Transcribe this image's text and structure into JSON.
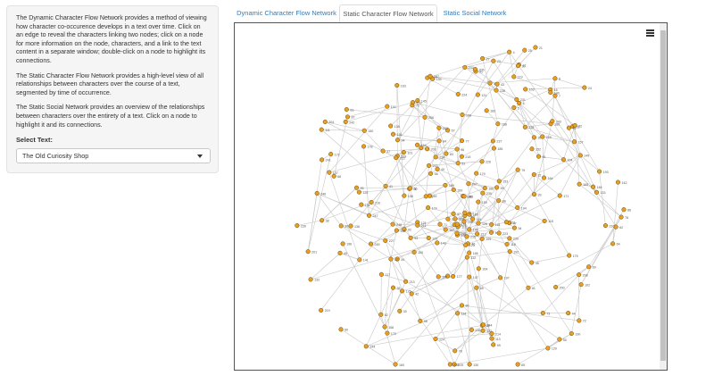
{
  "sidebar": {
    "paragraphs": [
      "The Dynamic Character Flow Network provides a method of viewing how character co-occurence develops in a text over time. Click on an edge to reveal the characters linking two nodes; click on a node for more information on the node, characters, and a link to the text content in a separate window; double-click on a node to highlight its connections.",
      "The Static Character Flow Network provides a high-level view of all relationships between characters over the course of a text, segmented by time of occurrence.",
      "The Static Social Network provides an overview of the relationships between characters over the entirety of a text. Click on a node to highlight it and its connections."
    ],
    "select_label": "Select Text:",
    "select_value": "The Old Curiosity Shop"
  },
  "tabs": [
    {
      "label": "Dynamic Character Flow Network",
      "active": false
    },
    {
      "label": "Static Character Flow Network",
      "active": true
    },
    {
      "label": "Static Social Network",
      "active": false
    }
  ],
  "graph": {
    "node_color": "#e8a020",
    "node_stroke": "#6b4a10",
    "edge_color": "#c8c8c8",
    "menu_icon": "hamburger-menu-icon",
    "nodes": [
      {
        "id": "4"
      },
      {
        "id": "5"
      },
      {
        "id": "7"
      },
      {
        "id": "6"
      },
      {
        "id": "8"
      },
      {
        "id": "11"
      },
      {
        "id": "16"
      },
      {
        "id": "12"
      },
      {
        "id": "23"
      },
      {
        "id": "24"
      },
      {
        "id": "27"
      },
      {
        "id": "25"
      },
      {
        "id": "20"
      },
      {
        "id": "21"
      },
      {
        "id": "34"
      },
      {
        "id": "36"
      },
      {
        "id": "30"
      },
      {
        "id": "31"
      },
      {
        "id": "32"
      },
      {
        "id": "35"
      },
      {
        "id": "37"
      },
      {
        "id": "38"
      },
      {
        "id": "39"
      },
      {
        "id": "40"
      },
      {
        "id": "41"
      },
      {
        "id": "42"
      },
      {
        "id": "43"
      },
      {
        "id": "44"
      },
      {
        "id": "45"
      },
      {
        "id": "46"
      },
      {
        "id": "47"
      },
      {
        "id": "48"
      },
      {
        "id": "49"
      },
      {
        "id": "50"
      },
      {
        "id": "51"
      },
      {
        "id": "52"
      },
      {
        "id": "53"
      },
      {
        "id": "54"
      },
      {
        "id": "55"
      },
      {
        "id": "56"
      },
      {
        "id": "57"
      },
      {
        "id": "58"
      },
      {
        "id": "59"
      },
      {
        "id": "60"
      },
      {
        "id": "61"
      },
      {
        "id": "62"
      },
      {
        "id": "63"
      },
      {
        "id": "64"
      },
      {
        "id": "65"
      },
      {
        "id": "66"
      },
      {
        "id": "67"
      },
      {
        "id": "68"
      },
      {
        "id": "69"
      },
      {
        "id": "70"
      },
      {
        "id": "71"
      },
      {
        "id": "72"
      },
      {
        "id": "73"
      },
      {
        "id": "74"
      },
      {
        "id": "75"
      },
      {
        "id": "76"
      },
      {
        "id": "77"
      },
      {
        "id": "78"
      },
      {
        "id": "79"
      },
      {
        "id": "80"
      },
      {
        "id": "81"
      },
      {
        "id": "82"
      },
      {
        "id": "83"
      },
      {
        "id": "84"
      },
      {
        "id": "85"
      },
      {
        "id": "86"
      },
      {
        "id": "87"
      },
      {
        "id": "88"
      },
      {
        "id": "89"
      },
      {
        "id": "90"
      },
      {
        "id": "91"
      },
      {
        "id": "92"
      },
      {
        "id": "93"
      },
      {
        "id": "94"
      },
      {
        "id": "95"
      },
      {
        "id": "96"
      },
      {
        "id": "97"
      },
      {
        "id": "98"
      },
      {
        "id": "99"
      },
      {
        "id": "100"
      },
      {
        "id": "101"
      },
      {
        "id": "102"
      },
      {
        "id": "103"
      },
      {
        "id": "104"
      },
      {
        "id": "105"
      },
      {
        "id": "106"
      },
      {
        "id": "107"
      },
      {
        "id": "108"
      },
      {
        "id": "109"
      },
      {
        "id": "110"
      },
      {
        "id": "111"
      },
      {
        "id": "112"
      },
      {
        "id": "113"
      },
      {
        "id": "114"
      },
      {
        "id": "115"
      },
      {
        "id": "116"
      },
      {
        "id": "117"
      },
      {
        "id": "118"
      },
      {
        "id": "119"
      },
      {
        "id": "120"
      },
      {
        "id": "121"
      },
      {
        "id": "122"
      },
      {
        "id": "123"
      },
      {
        "id": "124"
      },
      {
        "id": "125"
      },
      {
        "id": "126"
      },
      {
        "id": "127"
      },
      {
        "id": "128"
      },
      {
        "id": "129"
      },
      {
        "id": "130"
      },
      {
        "id": "131"
      },
      {
        "id": "132"
      },
      {
        "id": "133"
      },
      {
        "id": "134"
      },
      {
        "id": "135"
      },
      {
        "id": "136"
      },
      {
        "id": "137"
      },
      {
        "id": "138"
      },
      {
        "id": "139"
      },
      {
        "id": "140"
      },
      {
        "id": "141"
      },
      {
        "id": "142"
      },
      {
        "id": "143"
      },
      {
        "id": "144"
      },
      {
        "id": "145"
      },
      {
        "id": "146"
      },
      {
        "id": "147"
      },
      {
        "id": "148"
      },
      {
        "id": "149"
      },
      {
        "id": "150"
      },
      {
        "id": "151"
      },
      {
        "id": "152"
      },
      {
        "id": "153"
      },
      {
        "id": "154"
      },
      {
        "id": "155"
      },
      {
        "id": "156"
      },
      {
        "id": "157"
      },
      {
        "id": "158"
      },
      {
        "id": "159"
      },
      {
        "id": "160"
      },
      {
        "id": "161"
      },
      {
        "id": "162"
      },
      {
        "id": "163"
      },
      {
        "id": "164"
      },
      {
        "id": "165"
      },
      {
        "id": "166"
      },
      {
        "id": "167"
      },
      {
        "id": "168"
      },
      {
        "id": "169"
      },
      {
        "id": "170"
      },
      {
        "id": "171"
      },
      {
        "id": "172"
      },
      {
        "id": "173"
      },
      {
        "id": "174"
      },
      {
        "id": "175"
      },
      {
        "id": "176"
      },
      {
        "id": "177"
      },
      {
        "id": "178"
      },
      {
        "id": "179"
      },
      {
        "id": "180"
      },
      {
        "id": "181"
      },
      {
        "id": "182"
      },
      {
        "id": "183"
      },
      {
        "id": "184"
      },
      {
        "id": "185"
      },
      {
        "id": "186"
      },
      {
        "id": "187"
      },
      {
        "id": "188"
      },
      {
        "id": "189"
      },
      {
        "id": "190"
      },
      {
        "id": "191"
      },
      {
        "id": "192"
      },
      {
        "id": "193"
      },
      {
        "id": "194"
      },
      {
        "id": "195"
      },
      {
        "id": "196"
      },
      {
        "id": "197"
      },
      {
        "id": "198"
      },
      {
        "id": "199"
      },
      {
        "id": "200"
      },
      {
        "id": "201"
      },
      {
        "id": "202"
      },
      {
        "id": "203"
      },
      {
        "id": "204"
      },
      {
        "id": "205"
      },
      {
        "id": "206"
      },
      {
        "id": "207"
      },
      {
        "id": "208"
      },
      {
        "id": "209"
      },
      {
        "id": "210"
      },
      {
        "id": "211"
      },
      {
        "id": "212"
      },
      {
        "id": "213"
      },
      {
        "id": "214"
      },
      {
        "id": "215"
      },
      {
        "id": "216"
      },
      {
        "id": "217"
      },
      {
        "id": "218"
      },
      {
        "id": "219"
      },
      {
        "id": "220"
      },
      {
        "id": "221"
      },
      {
        "id": "222"
      },
      {
        "id": "223"
      },
      {
        "id": "224"
      },
      {
        "id": "225"
      },
      {
        "id": "226"
      },
      {
        "id": "227"
      },
      {
        "id": "228"
      },
      {
        "id": "229"
      },
      {
        "id": "230"
      },
      {
        "id": "231"
      },
      {
        "id": "232"
      },
      {
        "id": "233"
      },
      {
        "id": "234"
      },
      {
        "id": "235"
      },
      {
        "id": "236"
      },
      {
        "id": "237"
      },
      {
        "id": "238"
      },
      {
        "id": "239"
      },
      {
        "id": "240"
      },
      {
        "id": "241"
      },
      {
        "id": "242"
      },
      {
        "id": "243"
      },
      {
        "id": "244"
      },
      {
        "id": "245"
      },
      {
        "id": "246"
      },
      {
        "id": "247"
      },
      {
        "id": "248"
      }
    ]
  }
}
